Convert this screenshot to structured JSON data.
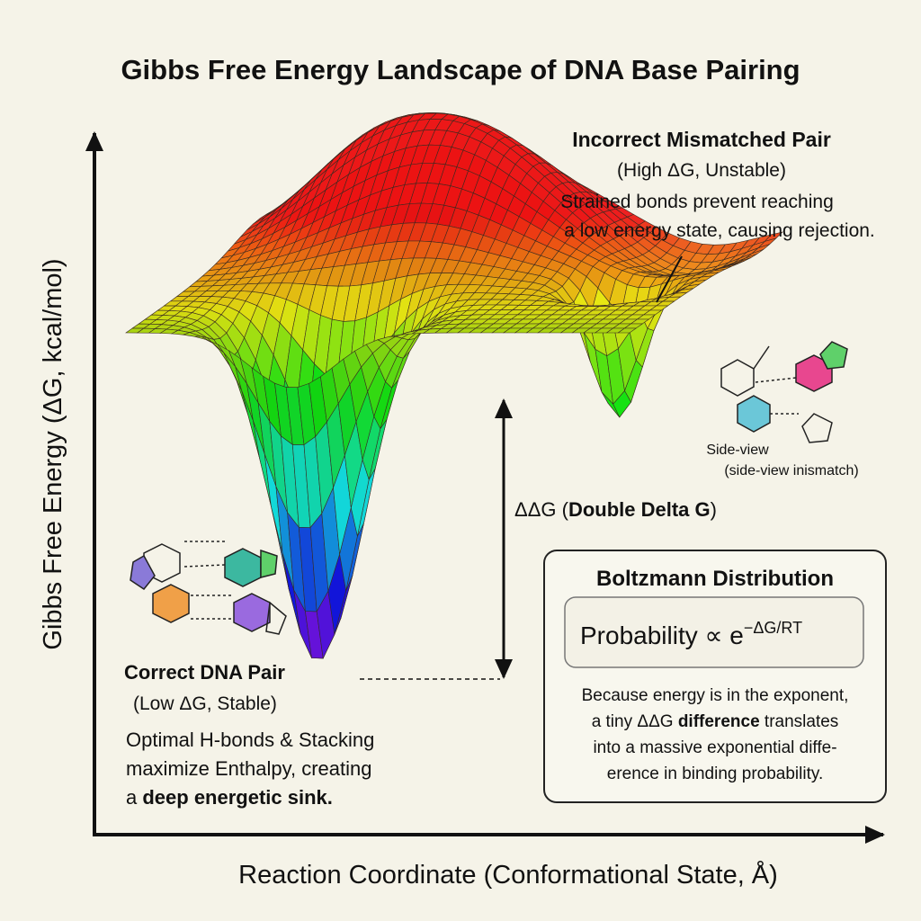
{
  "title": "Gibbs Free Energy Landscape of DNA Base Pairing",
  "axes": {
    "y_label": "Gibbs Free Energy (ΔG, kcal/mol)",
    "x_label": "Reaction Coordinate (Conformational State, Å)"
  },
  "mismatch": {
    "title": "Incorrect Mismatched Pair",
    "subtitle": "(High ΔG, Unstable)",
    "lines": [
      "Strained bonds prevent reaching",
      "a low energy state, causing rejection."
    ]
  },
  "side_view": {
    "label": "Side-view",
    "caption": "(side-view inismatch)"
  },
  "delta_delta_g": {
    "prefix": "ΔΔG (",
    "bold": "Double Delta G",
    "suffix": ")"
  },
  "correct": {
    "title": "Correct DNA Pair",
    "subtitle": "(Low ΔG, Stable)",
    "lines": [
      "Optimal H-bonds & Stacking",
      "maximize Enthalpy, creating"
    ],
    "last_line": {
      "prefix": "a ",
      "bold": "deep energetic sink."
    }
  },
  "boltzmann": {
    "title": "Boltzmann Distribution",
    "formula": {
      "base": "Probability ∝ e",
      "exponent": "−ΔG/RT"
    },
    "lines": [
      "Because energy is in the exponent,"
    ],
    "mixed_line": {
      "prefix": "a tiny ΔΔG ",
      "bold": "difference",
      "suffix": " translates"
    },
    "tail_lines": [
      "into a massive exponential diffe-",
      "erence in binding probability."
    ]
  }
}
